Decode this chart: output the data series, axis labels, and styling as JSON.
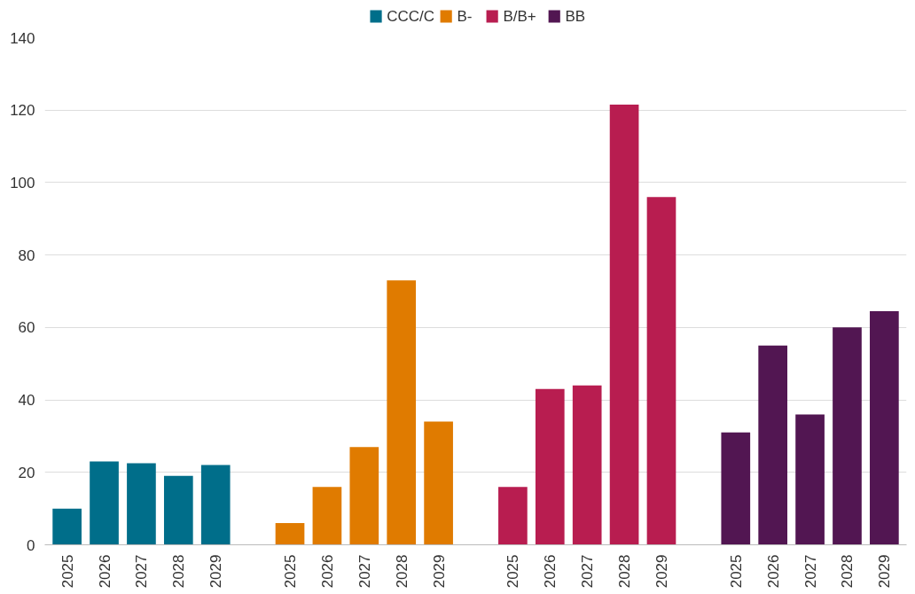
{
  "chart_data": {
    "type": "bar",
    "categories": [
      "2025",
      "2026",
      "2027",
      "2028",
      "2029",
      null,
      "2025",
      "2026",
      "2027",
      "2028",
      "2029",
      null,
      "2025",
      "2026",
      "2027",
      "2028",
      "2029",
      null,
      "2025",
      "2026",
      "2027",
      "2028",
      "2029"
    ],
    "series": [
      {
        "name": "CCC/C",
        "color": "#006e8a",
        "values": [
          10,
          23,
          22.5,
          19,
          22,
          null,
          null,
          null,
          null,
          null,
          null,
          null,
          null,
          null,
          null,
          null,
          null,
          null,
          null,
          null,
          null,
          null,
          null
        ]
      },
      {
        "name": "B-",
        "color": "#e07b00",
        "values": [
          null,
          null,
          null,
          null,
          null,
          null,
          6,
          16,
          27,
          73,
          34,
          null,
          null,
          null,
          null,
          null,
          null,
          null,
          null,
          null,
          null,
          null,
          null
        ]
      },
      {
        "name": "B/B+",
        "color": "#b81d50",
        "values": [
          null,
          null,
          null,
          null,
          null,
          null,
          null,
          null,
          null,
          null,
          null,
          null,
          16,
          43,
          44,
          121.5,
          96,
          null,
          null,
          null,
          null,
          null,
          null
        ]
      },
      {
        "name": "BB",
        "color": "#521652",
        "values": [
          null,
          null,
          null,
          null,
          null,
          null,
          null,
          null,
          null,
          null,
          null,
          null,
          null,
          null,
          null,
          null,
          null,
          null,
          31,
          55,
          36,
          60,
          64.5
        ]
      }
    ],
    "ylim": [
      0,
      140
    ],
    "yticks": [
      0,
      20,
      40,
      60,
      80,
      100,
      120,
      140
    ],
    "grid": "y",
    "legend": "top"
  }
}
